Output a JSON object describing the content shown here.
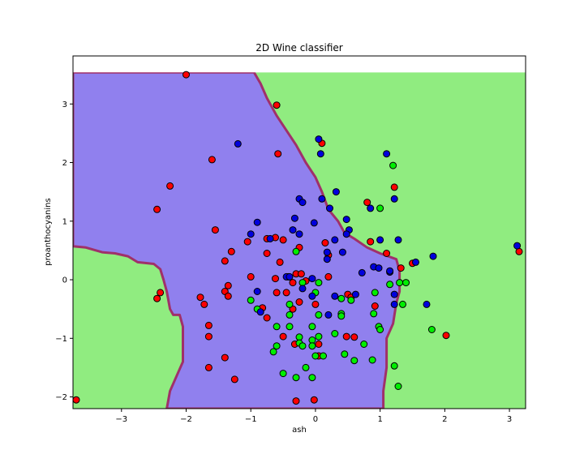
{
  "chart_data": {
    "type": "scatter",
    "title": "2D Wine classifier",
    "xlabel": "ash",
    "ylabel": "proanthocyanins",
    "xlim": [
      -3.75,
      3.25
    ],
    "ylim": [
      -2.2,
      3.82
    ],
    "xticks": [
      -3,
      -2,
      -1,
      0,
      1,
      2,
      3
    ],
    "xtick_labels": [
      "−3",
      "−2",
      "−1",
      "0",
      "1",
      "2",
      "3"
    ],
    "yticks": [
      -2,
      -1,
      0,
      1,
      2,
      3
    ],
    "ytick_labels": [
      "−2",
      "−1",
      "0",
      "1",
      "2",
      "3"
    ],
    "grid": false,
    "decision_regions": {
      "colors": {
        "class_0": "#9080ee",
        "class_1": "#90ec80",
        "boundary": "#a0306a"
      },
      "mesh_top": 3.54,
      "class_0_polygon": [
        [
          -3.75,
          0.57
        ],
        [
          -3.55,
          0.55
        ],
        [
          -3.3,
          0.47
        ],
        [
          -3.1,
          0.45
        ],
        [
          -2.9,
          0.4
        ],
        [
          -2.75,
          0.3
        ],
        [
          -2.5,
          0.27
        ],
        [
          -2.4,
          0.18
        ],
        [
          -2.35,
          0.0
        ],
        [
          -2.3,
          -0.2
        ],
        [
          -2.25,
          -0.5
        ],
        [
          -2.2,
          -0.6
        ],
        [
          -2.1,
          -0.6
        ],
        [
          -2.05,
          -0.8
        ],
        [
          -2.05,
          -1.4
        ],
        [
          -2.15,
          -1.65
        ],
        [
          -2.25,
          -1.9
        ],
        [
          -2.3,
          -2.2
        ],
        [
          1.05,
          -2.2
        ],
        [
          1.05,
          -1.9
        ],
        [
          1.1,
          -1.5
        ],
        [
          1.1,
          -1.0
        ],
        [
          1.2,
          -0.75
        ],
        [
          1.25,
          -0.4
        ],
        [
          1.3,
          -0.2
        ],
        [
          1.3,
          0.15
        ],
        [
          1.25,
          0.35
        ],
        [
          1.0,
          0.45
        ],
        [
          0.8,
          0.55
        ],
        [
          0.6,
          0.7
        ],
        [
          0.45,
          0.8
        ],
        [
          0.35,
          1.0
        ],
        [
          0.2,
          1.2
        ],
        [
          0.1,
          1.5
        ],
        [
          0.0,
          1.75
        ],
        [
          -0.15,
          2.0
        ],
        [
          -0.3,
          2.3
        ],
        [
          -0.45,
          2.55
        ],
        [
          -0.6,
          2.8
        ],
        [
          -0.75,
          3.1
        ],
        [
          -0.85,
          3.35
        ],
        [
          -0.95,
          3.54
        ],
        [
          -3.75,
          3.54
        ]
      ]
    },
    "series": [
      {
        "class": "class_0",
        "color": "#ff0000",
        "points": [
          [
            -2.0,
            3.5
          ],
          [
            -0.6,
            2.98
          ],
          [
            -0.58,
            2.15
          ],
          [
            0.1,
            2.33
          ],
          [
            -1.6,
            2.05
          ],
          [
            -2.25,
            1.6
          ],
          [
            -2.45,
            1.2
          ],
          [
            0.8,
            1.32
          ],
          [
            1.22,
            1.58
          ],
          [
            -1.55,
            0.85
          ],
          [
            -1.05,
            0.65
          ],
          [
            -0.75,
            0.7
          ],
          [
            -0.5,
            0.68
          ],
          [
            -0.62,
            0.72
          ],
          [
            0.15,
            0.63
          ],
          [
            0.2,
            0.42
          ],
          [
            0.85,
            0.65
          ],
          [
            1.1,
            0.45
          ],
          [
            1.32,
            0.2
          ],
          [
            1.5,
            0.28
          ],
          [
            -0.25,
            0.55
          ],
          [
            -0.3,
            0.1
          ],
          [
            -0.22,
            0.1
          ],
          [
            -0.42,
            0.05
          ],
          [
            -0.35,
            -0.05
          ],
          [
            -0.15,
            -0.02
          ],
          [
            0.2,
            0.05
          ],
          [
            -1.4,
            0.32
          ],
          [
            -1.3,
            0.48
          ],
          [
            -1.0,
            0.05
          ],
          [
            -0.75,
            0.45
          ],
          [
            -0.55,
            0.3
          ],
          [
            -0.62,
            0.02
          ],
          [
            -2.4,
            -0.22
          ],
          [
            -2.45,
            -0.32
          ],
          [
            -1.35,
            -0.1
          ],
          [
            -1.4,
            -0.2
          ],
          [
            -1.35,
            -0.28
          ],
          [
            -1.78,
            -0.3
          ],
          [
            -1.72,
            -0.42
          ],
          [
            -0.6,
            -0.22
          ],
          [
            -0.45,
            -0.22
          ],
          [
            -0.82,
            -0.48
          ],
          [
            -0.35,
            -0.5
          ],
          [
            -0.25,
            -0.38
          ],
          [
            -0.75,
            -0.65
          ],
          [
            0.0,
            -0.42
          ],
          [
            0.5,
            -0.25
          ],
          [
            0.55,
            -0.3
          ],
          [
            -1.65,
            -0.78
          ],
          [
            -1.65,
            -0.97
          ],
          [
            -0.5,
            -0.97
          ],
          [
            0.48,
            -0.97
          ],
          [
            0.6,
            -0.98
          ],
          [
            -1.4,
            -1.33
          ],
          [
            -1.65,
            -1.5
          ],
          [
            -1.25,
            -1.7
          ],
          [
            -0.32,
            -1.1
          ],
          [
            0.05,
            -1.1
          ],
          [
            0.05,
            -1.3
          ],
          [
            -0.3,
            -2.07
          ],
          [
            -0.02,
            -2.05
          ],
          [
            -3.7,
            -2.05
          ],
          [
            0.92,
            -0.45
          ],
          [
            2.02,
            -0.95
          ],
          [
            3.15,
            0.48
          ]
        ]
      },
      {
        "class": "class_1",
        "color": "#00ee00",
        "points": [
          [
            1.2,
            1.95
          ],
          [
            1.0,
            1.22
          ],
          [
            -0.3,
            0.48
          ],
          [
            -0.2,
            -0.05
          ],
          [
            0.05,
            -0.05
          ],
          [
            1.3,
            -0.05
          ],
          [
            1.4,
            -0.05
          ],
          [
            1.15,
            -0.08
          ],
          [
            0.0,
            -0.22
          ],
          [
            0.92,
            -0.22
          ],
          [
            -1.0,
            -0.35
          ],
          [
            0.4,
            -0.32
          ],
          [
            0.55,
            -0.35
          ],
          [
            -0.9,
            -0.5
          ],
          [
            -0.4,
            -0.42
          ],
          [
            1.35,
            -0.42
          ],
          [
            0.4,
            -0.58
          ],
          [
            0.9,
            -0.58
          ],
          [
            -0.6,
            -0.8
          ],
          [
            -0.4,
            -0.6
          ],
          [
            0.05,
            -0.6
          ],
          [
            0.4,
            -0.62
          ],
          [
            -0.4,
            -0.8
          ],
          [
            -0.05,
            -0.8
          ],
          [
            0.98,
            -0.8
          ],
          [
            -0.25,
            -0.98
          ],
          [
            0.3,
            -0.92
          ],
          [
            0.05,
            -0.97
          ],
          [
            -0.05,
            -1.03
          ],
          [
            1.0,
            -0.85
          ],
          [
            -0.6,
            -1.13
          ],
          [
            -0.65,
            -1.23
          ],
          [
            -0.25,
            -1.08
          ],
          [
            -0.2,
            -1.13
          ],
          [
            -0.05,
            -1.13
          ],
          [
            0.75,
            -1.1
          ],
          [
            0.45,
            -1.27
          ],
          [
            0.0,
            -1.3
          ],
          [
            0.12,
            -1.3
          ],
          [
            -0.5,
            -1.6
          ],
          [
            -0.3,
            -1.67
          ],
          [
            -0.05,
            -1.67
          ],
          [
            -0.15,
            -1.5
          ],
          [
            0.6,
            -1.38
          ],
          [
            0.88,
            -1.37
          ],
          [
            1.22,
            -1.47
          ],
          [
            1.28,
            -1.82
          ],
          [
            1.8,
            -0.85
          ]
        ]
      },
      {
        "class": "class_2",
        "color": "#0000dd",
        "points": [
          [
            -1.2,
            2.32
          ],
          [
            0.05,
            2.4
          ],
          [
            0.08,
            2.15
          ],
          [
            1.1,
            2.15
          ],
          [
            -0.25,
            1.38
          ],
          [
            -0.2,
            1.32
          ],
          [
            0.1,
            1.38
          ],
          [
            0.32,
            1.5
          ],
          [
            0.22,
            1.22
          ],
          [
            0.85,
            1.22
          ],
          [
            1.22,
            1.38
          ],
          [
            -0.9,
            0.98
          ],
          [
            -0.32,
            1.05
          ],
          [
            -0.02,
            0.97
          ],
          [
            0.48,
            1.03
          ],
          [
            0.52,
            0.85
          ],
          [
            0.48,
            0.78
          ],
          [
            -1.0,
            0.78
          ],
          [
            -0.7,
            0.7
          ],
          [
            -0.25,
            0.78
          ],
          [
            -0.35,
            0.85
          ],
          [
            0.3,
            0.68
          ],
          [
            1.0,
            0.68
          ],
          [
            1.28,
            0.68
          ],
          [
            0.18,
            0.47
          ],
          [
            0.42,
            0.47
          ],
          [
            0.18,
            0.35
          ],
          [
            0.9,
            0.22
          ],
          [
            0.98,
            0.2
          ],
          [
            1.15,
            0.13
          ],
          [
            0.72,
            0.12
          ],
          [
            -0.45,
            0.05
          ],
          [
            -0.4,
            0.05
          ],
          [
            -0.05,
            0.02
          ],
          [
            1.55,
            0.3
          ],
          [
            1.82,
            0.4
          ],
          [
            -0.9,
            -0.2
          ],
          [
            -0.2,
            -0.15
          ],
          [
            -0.05,
            -0.28
          ],
          [
            0.3,
            -0.28
          ],
          [
            0.62,
            -0.25
          ],
          [
            1.22,
            -0.25
          ],
          [
            -0.85,
            -0.55
          ],
          [
            0.2,
            -0.6
          ],
          [
            1.22,
            -0.42
          ],
          [
            1.72,
            -0.42
          ],
          [
            3.12,
            0.58
          ],
          [
            1.15,
            0.15
          ]
        ]
      }
    ]
  }
}
